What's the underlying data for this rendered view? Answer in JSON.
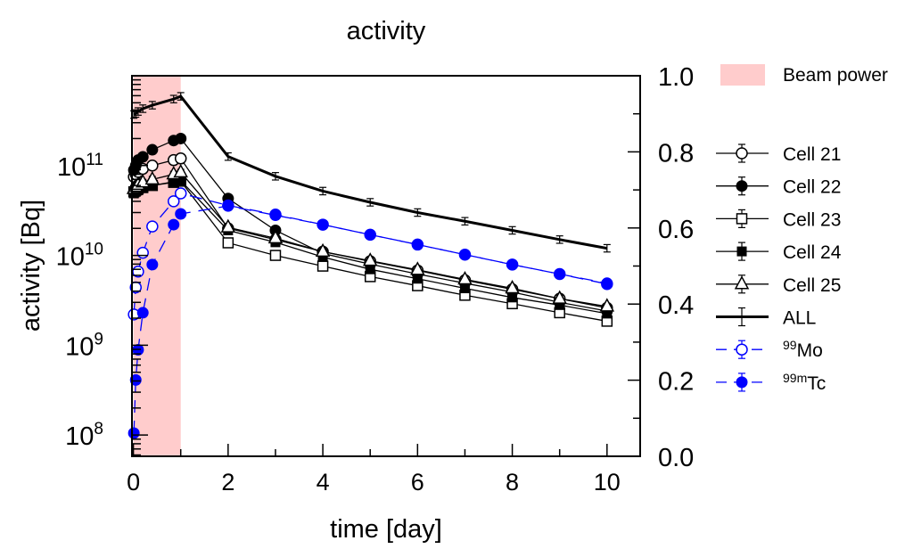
{
  "chart_data": {
    "type": "line",
    "title": "activity",
    "xlabel": "time [day]",
    "ylabel": "activity [Bq]",
    "xlim": [
      -0.03,
      10.7
    ],
    "ylim": [
      58000000.0,
      1000000000000.0
    ],
    "yscale": "log",
    "y2lim": [
      0,
      1
    ],
    "xticks": [
      "0",
      "2",
      "4",
      "6",
      "8",
      "10"
    ],
    "yticks": [
      {
        "base": "10",
        "exp": "8"
      },
      {
        "base": "10",
        "exp": "9"
      },
      {
        "base": "10",
        "exp": "10"
      },
      {
        "base": "10",
        "exp": "11"
      }
    ],
    "y2ticks": [
      "0.0",
      "0.2",
      "0.4",
      "0.6",
      "0.8",
      "1.0"
    ],
    "grid": false,
    "legend_placement": "right-outside",
    "beam": {
      "name": "Beam power",
      "x": [
        0,
        1
      ],
      "value": 1.0,
      "color": "#ffcccc"
    },
    "series": [
      {
        "name": "Cell 21",
        "marker": "open-circle",
        "color": "#000000",
        "dashed": false,
        "x": [
          0.01,
          0.05,
          0.1,
          0.2,
          0.4,
          0.85,
          1,
          2,
          3,
          4,
          5,
          6,
          7,
          8,
          9,
          10
        ],
        "y": [
          75000000000.0,
          80000000000.0,
          85000000000.0,
          92000000000.0,
          100000000000.0,
          115000000000.0,
          120000000000.0,
          20000000000.0,
          15000000000.0,
          11000000000.0,
          8600000000.0,
          6800000000.0,
          5300000000.0,
          4200000000.0,
          3300000000.0,
          2600000000.0
        ]
      },
      {
        "name": "Cell 22",
        "marker": "filled-circle",
        "color": "#000000",
        "dashed": false,
        "x": [
          0.01,
          0.05,
          0.1,
          0.2,
          0.4,
          0.85,
          1,
          2,
          3,
          4,
          5,
          6,
          7,
          8,
          9,
          10
        ],
        "y": [
          89000000000.0,
          100000000000.0,
          115000000000.0,
          125000000000.0,
          150000000000.0,
          190000000000.0,
          200000000000.0,
          43000000000.0,
          19000000000.0,
          10500000000.0,
          8000000000.0,
          6200000000.0,
          4900000000.0,
          3900000000.0,
          3000000000.0,
          2400000000.0
        ]
      },
      {
        "name": "Cell 23",
        "marker": "open-square",
        "color": "#000000",
        "dashed": false,
        "x": [
          0.01,
          0.05,
          0.1,
          0.2,
          0.4,
          0.85,
          1,
          2,
          3,
          4,
          5,
          6,
          7,
          8,
          9,
          10
        ],
        "y": [
          51000000000.0,
          53000000000.0,
          55000000000.0,
          57000000000.0,
          60000000000.0,
          65000000000.0,
          67000000000.0,
          13800000000.0,
          10000000000.0,
          7600000000.0,
          5800000000.0,
          4600000000.0,
          3600000000.0,
          2900000000.0,
          2300000000.0,
          1850000000.0
        ]
      },
      {
        "name": "Cell 24",
        "marker": "filled-square",
        "color": "#000000",
        "dashed": false,
        "x": [
          0.01,
          0.05,
          0.1,
          0.2,
          0.4,
          0.85,
          1,
          2,
          3,
          4,
          5,
          6,
          7,
          8,
          9,
          10
        ],
        "y": [
          49000000000.0,
          51000000000.0,
          53000000000.0,
          56000000000.0,
          60000000000.0,
          66000000000.0,
          68000000000.0,
          19000000000.0,
          14000000000.0,
          9600000000.0,
          7000000000.0,
          5500000000.0,
          4300000000.0,
          3400000000.0,
          2800000000.0,
          2250000000.0
        ]
      },
      {
        "name": "Cell 25",
        "marker": "open-triangle",
        "color": "#000000",
        "dashed": false,
        "x": [
          0.01,
          0.05,
          0.1,
          0.2,
          0.4,
          0.85,
          1,
          2,
          3,
          4,
          5,
          6,
          7,
          8,
          9,
          10
        ],
        "y": [
          55000000000.0,
          58000000000.0,
          61000000000.0,
          65000000000.0,
          70000000000.0,
          80000000000.0,
          84000000000.0,
          20500000000.0,
          15500000000.0,
          11000000000.0,
          8700000000.0,
          6900000000.0,
          5400000000.0,
          4300000000.0,
          3300000000.0,
          2700000000.0
        ]
      },
      {
        "name": "ALL",
        "marker": "none",
        "color": "#000000",
        "dashed": false,
        "thick": true,
        "x": [
          0.01,
          0.05,
          0.1,
          0.2,
          0.4,
          0.85,
          1,
          2,
          3,
          4,
          5,
          6,
          7,
          8,
          9,
          10
        ],
        "y": [
          370000000000.0,
          380000000000.0,
          400000000000.0,
          430000000000.0,
          470000000000.0,
          550000000000.0,
          590000000000.0,
          126000000000.0,
          76000000000.0,
          52000000000.0,
          39000000000.0,
          30000000000.0,
          24000000000.0,
          19000000000.0,
          15000000000.0,
          12000000000.0
        ]
      },
      {
        "name": "99 Mo",
        "sup": "99",
        "label": "Mo",
        "marker": "open-circle",
        "color": "#0000ff",
        "dashed": true,
        "x": [
          0.01,
          0.05,
          0.1,
          0.2,
          0.4,
          0.85,
          1,
          2,
          3,
          4,
          5,
          6,
          7,
          8,
          9,
          10
        ],
        "y": [
          2200000000.0,
          4400000000.0,
          6600000000.0,
          10700000000.0,
          21000000000.0,
          40000000000.0,
          49000000000.0,
          36000000000.0,
          28500000000.0,
          22000000000.0,
          17000000000.0,
          13200000000.0,
          10200000000.0,
          7900000000.0,
          6200000000.0,
          4800000000.0
        ]
      },
      {
        "name": "99m Tc",
        "sup": "99m",
        "label": "Tc",
        "marker": "filled-circle",
        "color": "#0000ff",
        "dashed": true,
        "x": [
          0.01,
          0.05,
          0.1,
          0.2,
          0.4,
          0.85,
          1,
          2,
          3,
          4,
          5,
          6,
          7,
          8,
          9,
          10
        ],
        "y": [
          105000000.0,
          410000000.0,
          890000000.0,
          2300000000.0,
          7900000000.0,
          22000000000.0,
          29000000000.0,
          35500000000.0,
          28000000000.0,
          22000000000.0,
          17000000000.0,
          13200000000.0,
          10200000000.0,
          7900000000.0,
          6200000000.0,
          4900000000.0
        ]
      }
    ]
  }
}
